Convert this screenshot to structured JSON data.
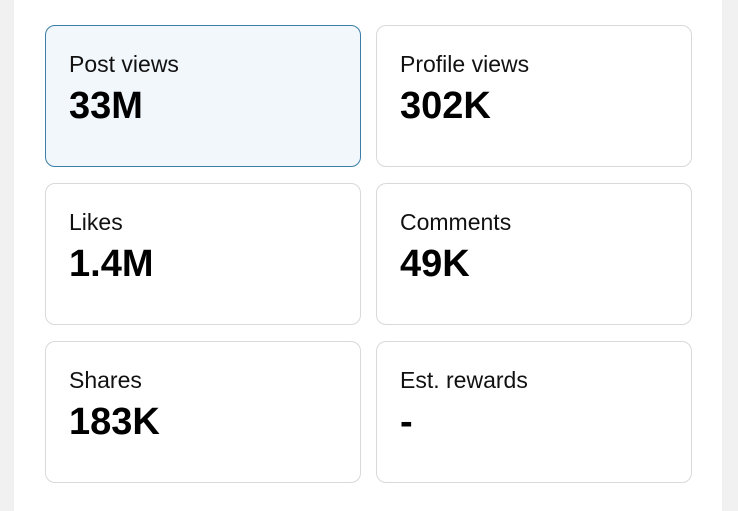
{
  "stats": [
    {
      "label": "Post views",
      "value": "33M"
    },
    {
      "label": "Profile views",
      "value": "302K"
    },
    {
      "label": "Likes",
      "value": "1.4M"
    },
    {
      "label": "Comments",
      "value": "49K"
    },
    {
      "label": "Shares",
      "value": "183K"
    },
    {
      "label": "Est. rewards",
      "value": "-"
    }
  ],
  "selected_stat": "Post views",
  "colors": {
    "selected_border": "#3b7ea8",
    "selected_background": "#f2f7fc",
    "card_border": "#d9d9dc"
  }
}
